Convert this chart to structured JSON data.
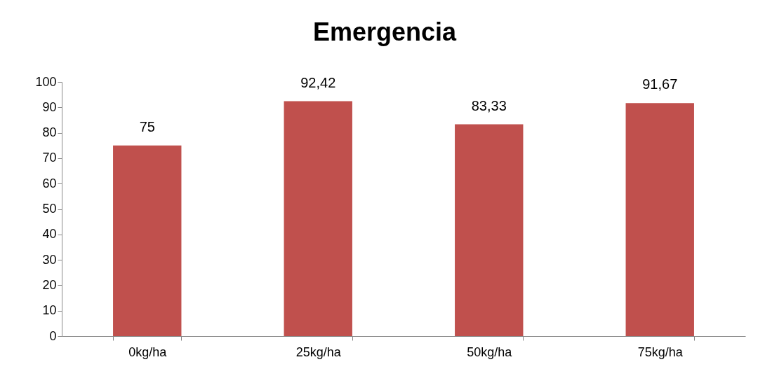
{
  "chart_data": {
    "type": "bar",
    "title": "Emergencia",
    "categories": [
      "0kg/ha",
      "25kg/ha",
      "50kg/ha",
      "75kg/ha"
    ],
    "values": [
      75,
      92.42,
      83.33,
      91.67
    ],
    "value_labels": [
      "75",
      "92,42",
      "83,33",
      "91,67"
    ],
    "color": "#c0504d",
    "ylim": [
      0,
      100
    ],
    "yticks": [
      0,
      10,
      20,
      30,
      40,
      50,
      60,
      70,
      80,
      90,
      100
    ],
    "grid": false
  }
}
